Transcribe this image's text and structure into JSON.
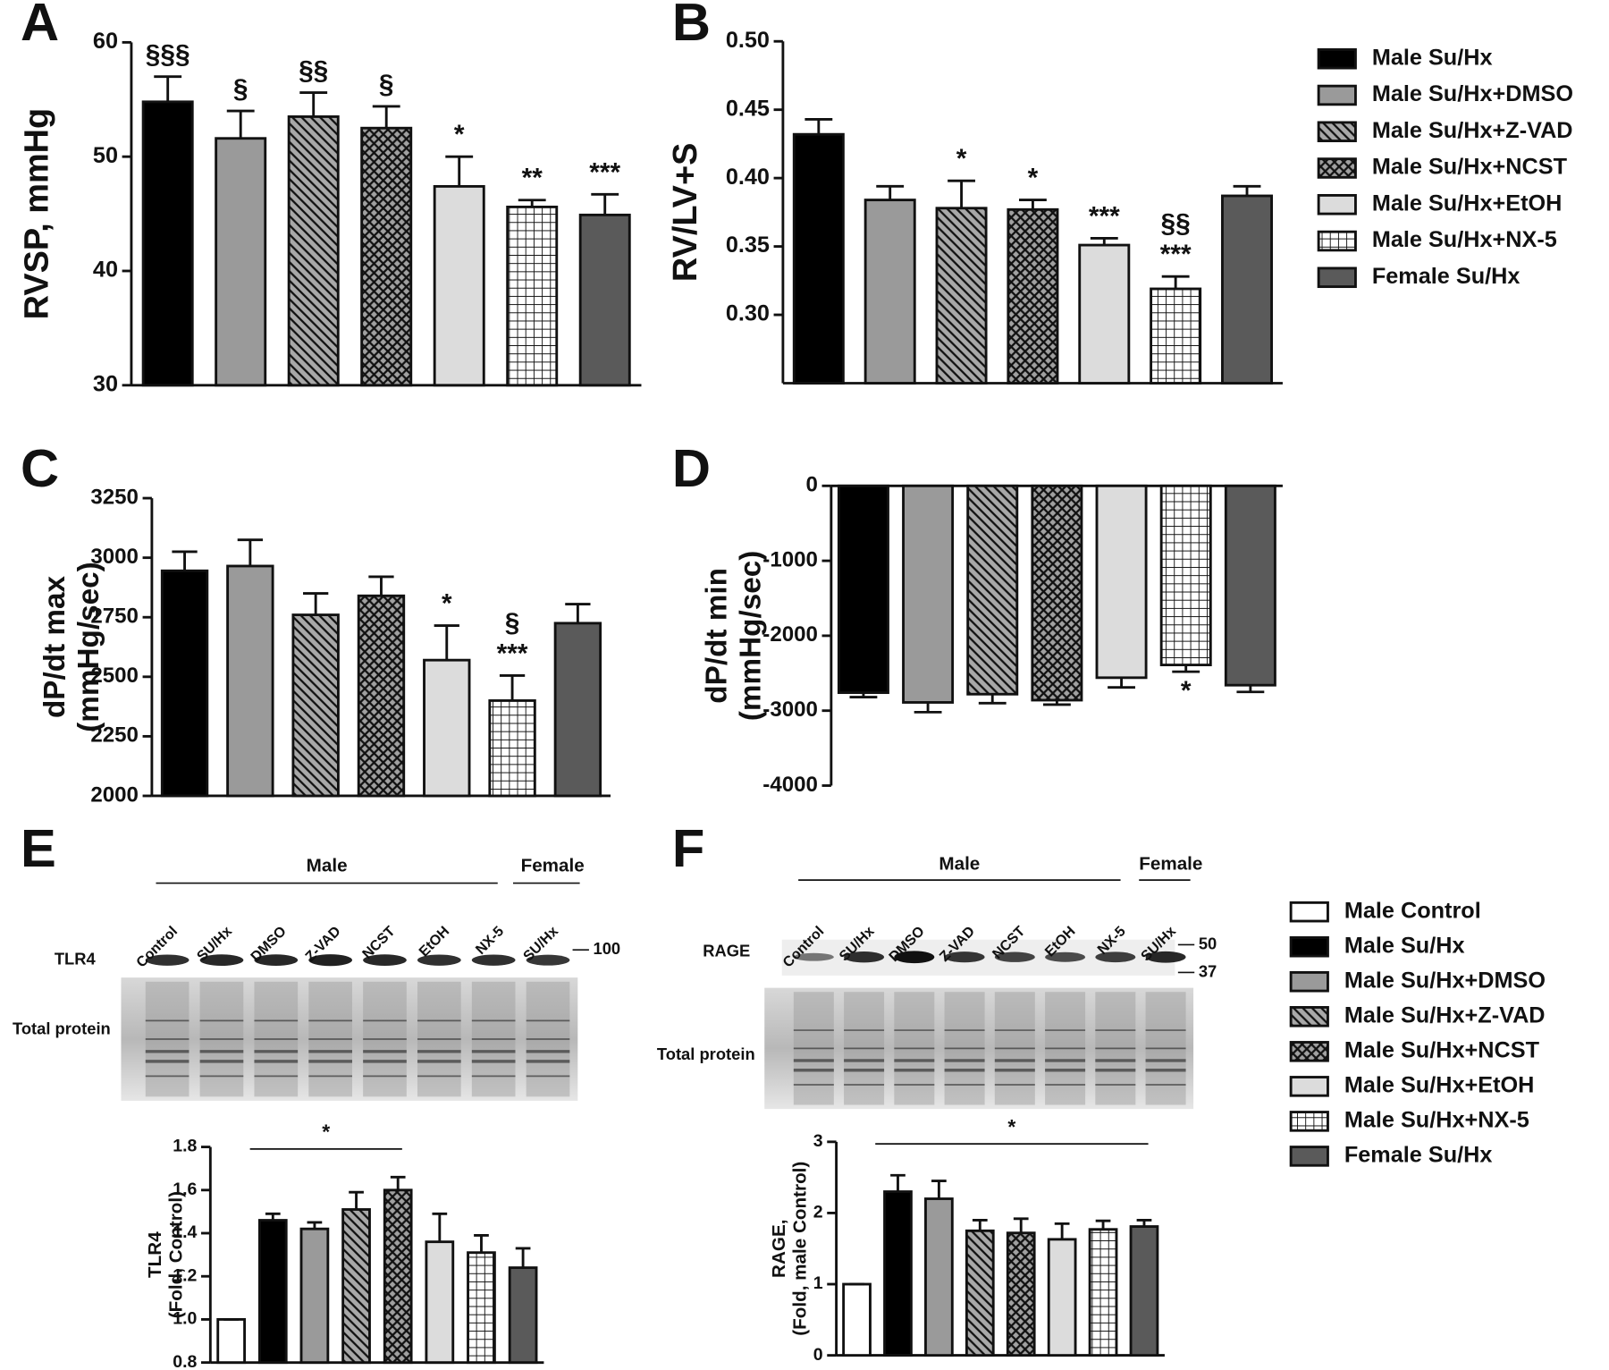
{
  "legends": [
    {
      "items": [
        {
          "name": "Male Su/Hx",
          "color": "#000000",
          "pattern": "none"
        },
        {
          "name": "Male Su/Hx+DMSO",
          "color": "#9a9a9a",
          "pattern": "none"
        },
        {
          "name": "Male Su/Hx+Z-VAD",
          "color": "#a8a8a8",
          "pattern": "stripes"
        },
        {
          "name": "Male Su/Hx+NCST",
          "color": "#a0a0a0",
          "pattern": "cross"
        },
        {
          "name": "Male Su/Hx+EtOH",
          "color": "#dcdcdc",
          "pattern": "none"
        },
        {
          "name": "Male Su/Hx+NX-5",
          "color": "#ffffff",
          "pattern": "grid"
        },
        {
          "name": "Female Su/Hx",
          "color": "#5a5a5a",
          "pattern": "none"
        }
      ]
    },
    {
      "items": [
        {
          "name": "Male Control",
          "color": "#ffffff",
          "pattern": "none"
        },
        {
          "name": "Male Su/Hx",
          "color": "#000000",
          "pattern": "none"
        },
        {
          "name": "Male Su/Hx+DMSO",
          "color": "#9a9a9a",
          "pattern": "none"
        },
        {
          "name": "Male Su/Hx+Z-VAD",
          "color": "#a8a8a8",
          "pattern": "stripes"
        },
        {
          "name": "Male Su/Hx+NCST",
          "color": "#a0a0a0",
          "pattern": "cross"
        },
        {
          "name": "Male Su/Hx+EtOH",
          "color": "#dcdcdc",
          "pattern": "none"
        },
        {
          "name": "Male Su/Hx+NX-5",
          "color": "#ffffff",
          "pattern": "grid"
        },
        {
          "name": "Female Su/Hx",
          "color": "#5a5a5a",
          "pattern": "none"
        }
      ]
    }
  ],
  "blots": [
    {
      "groups": [
        "Male",
        "Female"
      ],
      "lanes": [
        "Control",
        "SU/Hx",
        "DMSO",
        "Z-VAD",
        "NCST",
        "EtOH",
        "NX-5",
        "SU/Hx"
      ],
      "protein": "TLR4",
      "loading": "Total protein",
      "markers": [
        "100"
      ]
    },
    {
      "groups": [
        "Male",
        "Female"
      ],
      "lanes": [
        "Control",
        "SU/Hx",
        "DMSO",
        "Z-VAD",
        "NCST",
        "EtOH",
        "NX-5",
        "SU/Hx"
      ],
      "protein": "RAGE",
      "loading": "Total protein",
      "markers": [
        "50",
        "37"
      ]
    }
  ],
  "chart_data": [
    {
      "type": "bar",
      "panel": "A",
      "legend": 0,
      "ylabel": [
        "RVSP, mmHg"
      ],
      "values": [
        54.8,
        51.6,
        53.5,
        52.5,
        47.4,
        45.6,
        44.9
      ],
      "errors": [
        2.2,
        2.4,
        2.1,
        1.9,
        2.6,
        0.6,
        1.8
      ],
      "significance": [
        [
          "§§§"
        ],
        [
          "§"
        ],
        [
          "§§"
        ],
        [
          "§"
        ],
        [
          "*"
        ],
        [
          "**"
        ],
        [
          "***"
        ]
      ],
      "ylim": [
        30,
        60
      ],
      "yticks": [
        30,
        40,
        50,
        60
      ]
    },
    {
      "type": "bar",
      "panel": "B",
      "legend": 0,
      "ylabel": [
        "RV/LV+S"
      ],
      "values": [
        0.432,
        0.384,
        0.378,
        0.377,
        0.351,
        0.319,
        0.387
      ],
      "errors": [
        0.011,
        0.01,
        0.02,
        0.007,
        0.005,
        0.009,
        0.007
      ],
      "significance": [
        [],
        [],
        [
          "*"
        ],
        [
          "*"
        ],
        [
          "***"
        ],
        [
          "§§",
          "***"
        ],
        []
      ],
      "ylim": [
        0.25,
        0.5
      ],
      "yticks": [
        {
          "value": 0.3,
          "label": "0.30"
        },
        0.35,
        {
          "value": 0.4,
          "label": "0.40"
        },
        0.45,
        {
          "value": 0.5,
          "label": "0.50"
        }
      ]
    },
    {
      "type": "bar",
      "panel": "C",
      "legend": 0,
      "ylabel": [
        "dP/dt max",
        "(mmHg/sec)"
      ],
      "values": [
        2945,
        2965,
        2760,
        2840,
        2570,
        2400,
        2725
      ],
      "errors": [
        80,
        110,
        90,
        80,
        145,
        105,
        80
      ],
      "significance": [
        [],
        [],
        [],
        [],
        [
          "*"
        ],
        [
          "§",
          "***"
        ],
        []
      ],
      "ylim": [
        2000,
        3250
      ],
      "yticks": [
        2000,
        2250,
        2500,
        2750,
        3000,
        3250
      ]
    },
    {
      "type": "bar",
      "panel": "D",
      "legend": 0,
      "ylabel": [
        "dP/dt min",
        "(mmHg/sec)"
      ],
      "values": [
        -2760,
        -2890,
        -2780,
        -2860,
        -2560,
        -2390,
        -2660
      ],
      "errors": [
        60,
        130,
        120,
        60,
        130,
        90,
        90
      ],
      "significance": [
        [],
        [],
        [],
        [],
        [],
        [
          "*"
        ],
        []
      ],
      "ylim": [
        -4000,
        0
      ],
      "yticks": [
        -4000,
        -3000,
        -2000,
        -1000,
        0
      ]
    },
    {
      "type": "bar",
      "panel": "E",
      "legend": 1,
      "ylabel": [
        "TLR4",
        "(Fold, Control)"
      ],
      "values": [
        1.0,
        1.46,
        1.42,
        1.51,
        1.6,
        1.36,
        1.31,
        1.24
      ],
      "errors": [
        0,
        0.03,
        0.03,
        0.08,
        0.06,
        0.13,
        0.08,
        0.09
      ],
      "bracket": {
        "text": "*",
        "span": [
          1,
          4
        ]
      },
      "ylim": [
        0.8,
        1.8
      ],
      "yticks": [
        0.8,
        {
          "value": 1.0,
          "label": "1.0"
        },
        1.2,
        1.4,
        1.6,
        1.8
      ]
    },
    {
      "type": "bar",
      "panel": "F",
      "legend": 1,
      "ylabel": [
        "RAGE,",
        "(Fold, male Control)"
      ],
      "values": [
        1.0,
        2.3,
        2.2,
        1.75,
        1.72,
        1.63,
        1.77,
        1.81
      ],
      "errors": [
        0,
        0.23,
        0.25,
        0.15,
        0.2,
        0.22,
        0.12,
        0.09
      ],
      "bracket": {
        "text": "*",
        "span": [
          1,
          7
        ]
      },
      "ylim": [
        0,
        3
      ],
      "yticks": [
        0,
        1,
        2,
        3
      ]
    }
  ]
}
